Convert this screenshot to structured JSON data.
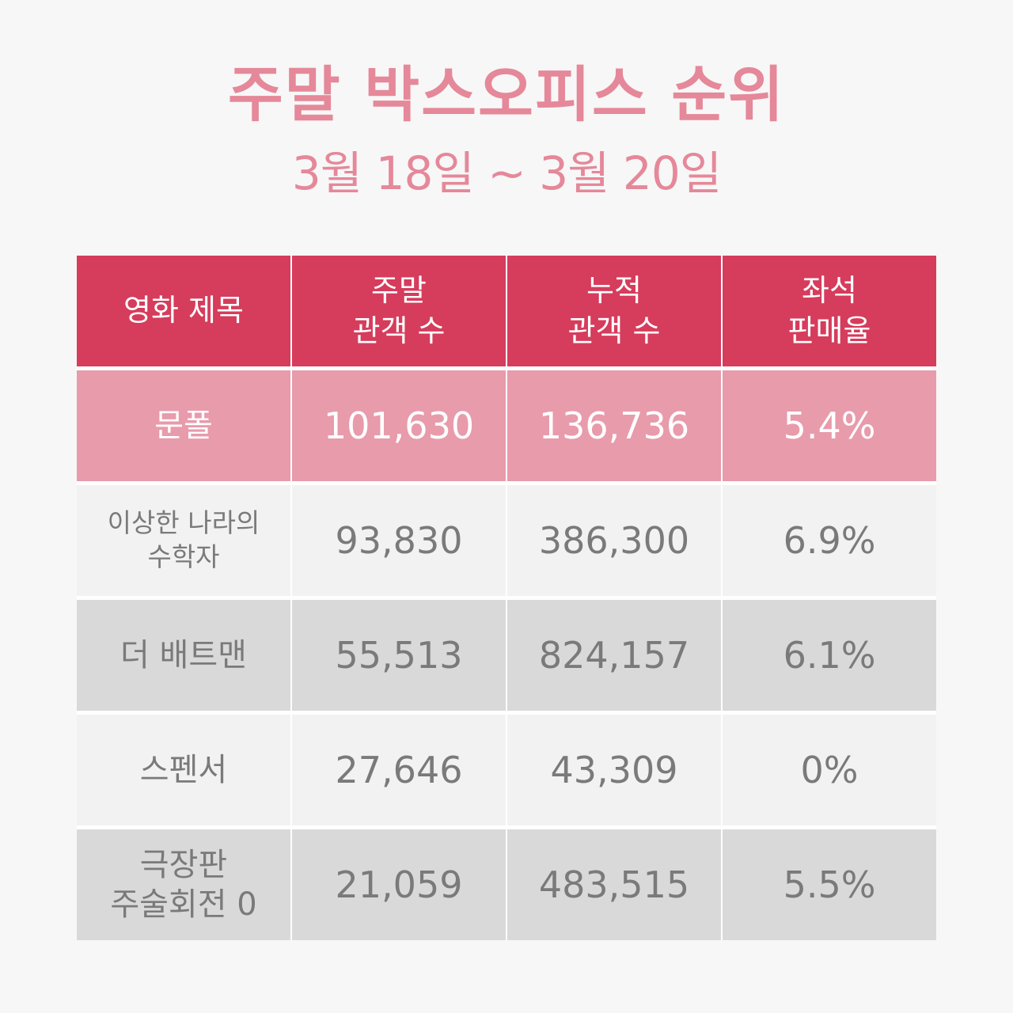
{
  "header": {
    "title": "주말 박스오피스 순위",
    "subtitle": "3월 18일 ~ 3월 20일"
  },
  "table": {
    "columns": [
      "영화 제목",
      "주말\n관객 수",
      "누적\n관객 수",
      "좌석\n판매율"
    ],
    "rows": [
      {
        "title": "문폴",
        "weekend": "101,630",
        "cumulative": "136,736",
        "seat_rate": "5.4%"
      },
      {
        "title": "이상한 나라의\n수학자",
        "weekend": "93,830",
        "cumulative": "386,300",
        "seat_rate": "6.9%"
      },
      {
        "title": "더 배트맨",
        "weekend": "55,513",
        "cumulative": "824,157",
        "seat_rate": "6.1%"
      },
      {
        "title": "스펜서",
        "weekend": "27,646",
        "cumulative": "43,309",
        "seat_rate": "0%"
      },
      {
        "title": "극장판\n주술회전 0",
        "weekend": "21,059",
        "cumulative": "483,515",
        "seat_rate": "5.5%"
      }
    ]
  },
  "colors": {
    "title": "#E5889A",
    "header_bg": "#D63C5C",
    "highlight_row_bg": "#E89BAB",
    "light_row_bg": "#F2F2F2",
    "gray_row_bg": "#D9D9D9",
    "body_text": "#7A7A7A"
  }
}
